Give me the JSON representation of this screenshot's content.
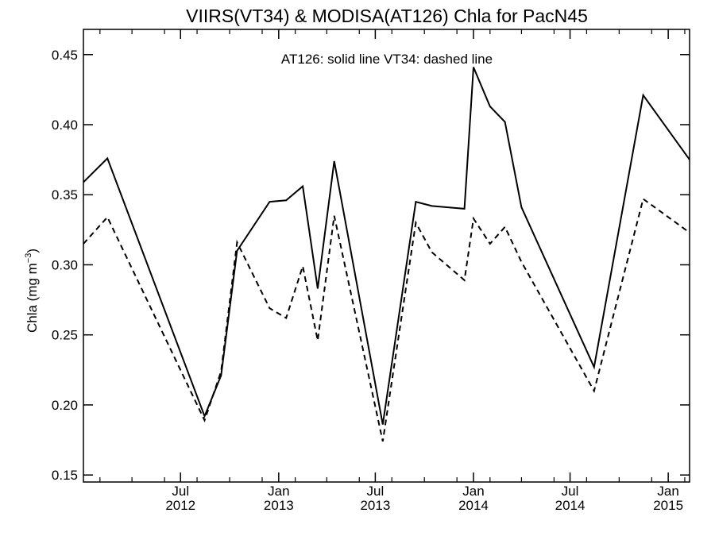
{
  "chart_data": {
    "type": "line",
    "title": "VIIRS(VT34) & MODISA(AT126)  Chla for PacN45",
    "ylabel_main": "Chla (mg m",
    "ylabel_sup": "−3",
    "ylabel_close": ")",
    "annotation": "AT126: solid line   VT34: dashed line",
    "ylim": [
      0.145,
      0.468
    ],
    "xlim": [
      "2012-01-01",
      "2015-02-10"
    ],
    "y_ticks": [
      0.15,
      0.2,
      0.25,
      0.3,
      0.35,
      0.4,
      0.45
    ],
    "y_tick_labels": [
      "0.15",
      "0.20",
      "0.25",
      "0.30",
      "0.35",
      "0.40",
      "0.45"
    ],
    "x_ticks": [
      {
        "date": "2012-07-01",
        "month": "Jul",
        "year": "2012"
      },
      {
        "date": "2013-01-01",
        "month": "Jan",
        "year": "2013"
      },
      {
        "date": "2013-07-01",
        "month": "Jul",
        "year": "2013"
      },
      {
        "date": "2014-01-01",
        "month": "Jan",
        "year": "2014"
      },
      {
        "date": "2014-07-01",
        "month": "Jul",
        "year": "2014"
      },
      {
        "date": "2015-01-01",
        "month": "Jan",
        "year": "2015"
      }
    ],
    "minor_x_ticks": [
      "2012-02-01",
      "2012-04-01",
      "2012-06-01",
      "2012-08-01",
      "2012-10-01",
      "2012-12-01",
      "2013-02-01",
      "2013-04-01",
      "2013-06-01",
      "2013-08-01",
      "2013-10-01",
      "2013-12-01",
      "2014-02-01",
      "2014-04-01",
      "2014-06-01",
      "2014-08-01",
      "2014-10-01",
      "2014-12-01",
      "2015-02-01"
    ],
    "series": [
      {
        "name": "AT126",
        "style": "solid",
        "points": [
          [
            "2012-01-01",
            0.359
          ],
          [
            "2012-02-15",
            0.376
          ],
          [
            "2012-08-15",
            0.192
          ],
          [
            "2012-09-15",
            0.221
          ],
          [
            "2012-10-15",
            0.31
          ],
          [
            "2012-12-15",
            0.345
          ],
          [
            "2013-01-15",
            0.346
          ],
          [
            "2013-02-15",
            0.356
          ],
          [
            "2013-03-15",
            0.283
          ],
          [
            "2013-04-15",
            0.374
          ],
          [
            "2013-07-15",
            0.186
          ],
          [
            "2013-09-15",
            0.345
          ],
          [
            "2013-10-15",
            0.342
          ],
          [
            "2013-12-15",
            0.34
          ],
          [
            "2014-01-01",
            0.441
          ],
          [
            "2014-02-01",
            0.413
          ],
          [
            "2014-03-01",
            0.402
          ],
          [
            "2014-04-01",
            0.341
          ],
          [
            "2014-08-15",
            0.227
          ],
          [
            "2014-11-15",
            0.421
          ],
          [
            "2015-02-10",
            0.375
          ]
        ]
      },
      {
        "name": "VT34",
        "style": "dashed",
        "points": [
          [
            "2012-01-01",
            0.315
          ],
          [
            "2012-02-15",
            0.334
          ],
          [
            "2012-08-15",
            0.189
          ],
          [
            "2012-09-15",
            0.224
          ],
          [
            "2012-10-15",
            0.316
          ],
          [
            "2012-12-15",
            0.269
          ],
          [
            "2013-01-15",
            0.262
          ],
          [
            "2013-02-15",
            0.299
          ],
          [
            "2013-03-15",
            0.246
          ],
          [
            "2013-04-15",
            0.335
          ],
          [
            "2013-07-15",
            0.174
          ],
          [
            "2013-09-15",
            0.33
          ],
          [
            "2013-10-15",
            0.309
          ],
          [
            "2013-12-15",
            0.289
          ],
          [
            "2014-01-01",
            0.333
          ],
          [
            "2014-02-01",
            0.315
          ],
          [
            "2014-03-01",
            0.327
          ],
          [
            "2014-04-01",
            0.302
          ],
          [
            "2014-08-15",
            0.21
          ],
          [
            "2014-11-15",
            0.347
          ],
          [
            "2015-02-10",
            0.323
          ]
        ]
      }
    ]
  }
}
